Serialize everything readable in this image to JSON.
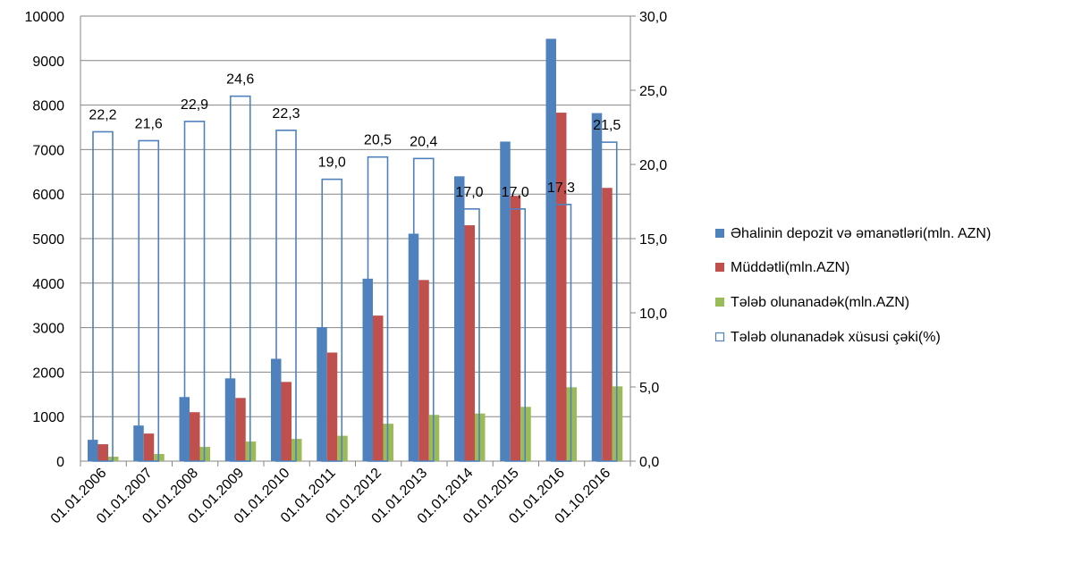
{
  "chart_data": {
    "type": "bar",
    "title": "",
    "categories": [
      "01.01.2006",
      "01.01.2007",
      "01.01.2008",
      "01.01.2009",
      "01.01.2010",
      "01.01.2011",
      "01.01.2012",
      "01.01.2013",
      "01.01.2014",
      "01.01.2015",
      "01.01.2016",
      "01.10.2016"
    ],
    "series": [
      {
        "name": "Əhalinin depozit və əmanətləri(mln.  AZN)",
        "axis": "left",
        "color": "#4f81bd",
        "style": "filled",
        "values": [
          480,
          800,
          1440,
          1860,
          2300,
          3010,
          4100,
          5110,
          6400,
          7180,
          9490,
          7820
        ]
      },
      {
        "name": "Müddətli(mln.AZN)",
        "axis": "left",
        "color": "#c0504d",
        "style": "filled",
        "values": [
          380,
          620,
          1100,
          1420,
          1780,
          2440,
          3270,
          4070,
          5300,
          5960,
          7830,
          6140
        ]
      },
      {
        "name": "Tələb olunanadək(mln.AZN)",
        "axis": "left",
        "color": "#9bbb59",
        "style": "filled",
        "values": [
          100,
          160,
          320,
          440,
          500,
          570,
          840,
          1040,
          1070,
          1220,
          1660,
          1680
        ]
      },
      {
        "name": "Tələb olunanadək  xüsusi çəki(%)",
        "axis": "right",
        "color": "#4f81bd",
        "style": "outline",
        "values": [
          22.2,
          21.6,
          22.9,
          24.6,
          22.3,
          19.0,
          20.5,
          20.4,
          17.0,
          17.0,
          17.3,
          21.5
        ],
        "labels": [
          "22,2",
          "21,6",
          "22,9",
          "24,6",
          "22,3",
          "19,0",
          "20,5",
          "20,4",
          "17,0",
          "17,0",
          "17,3",
          "21,5"
        ]
      }
    ],
    "y_left": {
      "min": 0,
      "max": 10000,
      "ticks": [
        "0",
        "1000",
        "2000",
        "3000",
        "4000",
        "5000",
        "6000",
        "7000",
        "8000",
        "9000",
        "10000"
      ]
    },
    "y_right": {
      "min": 0,
      "max": 30,
      "ticks": [
        "0,0",
        "5,0",
        "10,0",
        "15,0",
        "20,0",
        "25,0",
        "30,0"
      ]
    },
    "grid": true,
    "legend": "right"
  }
}
